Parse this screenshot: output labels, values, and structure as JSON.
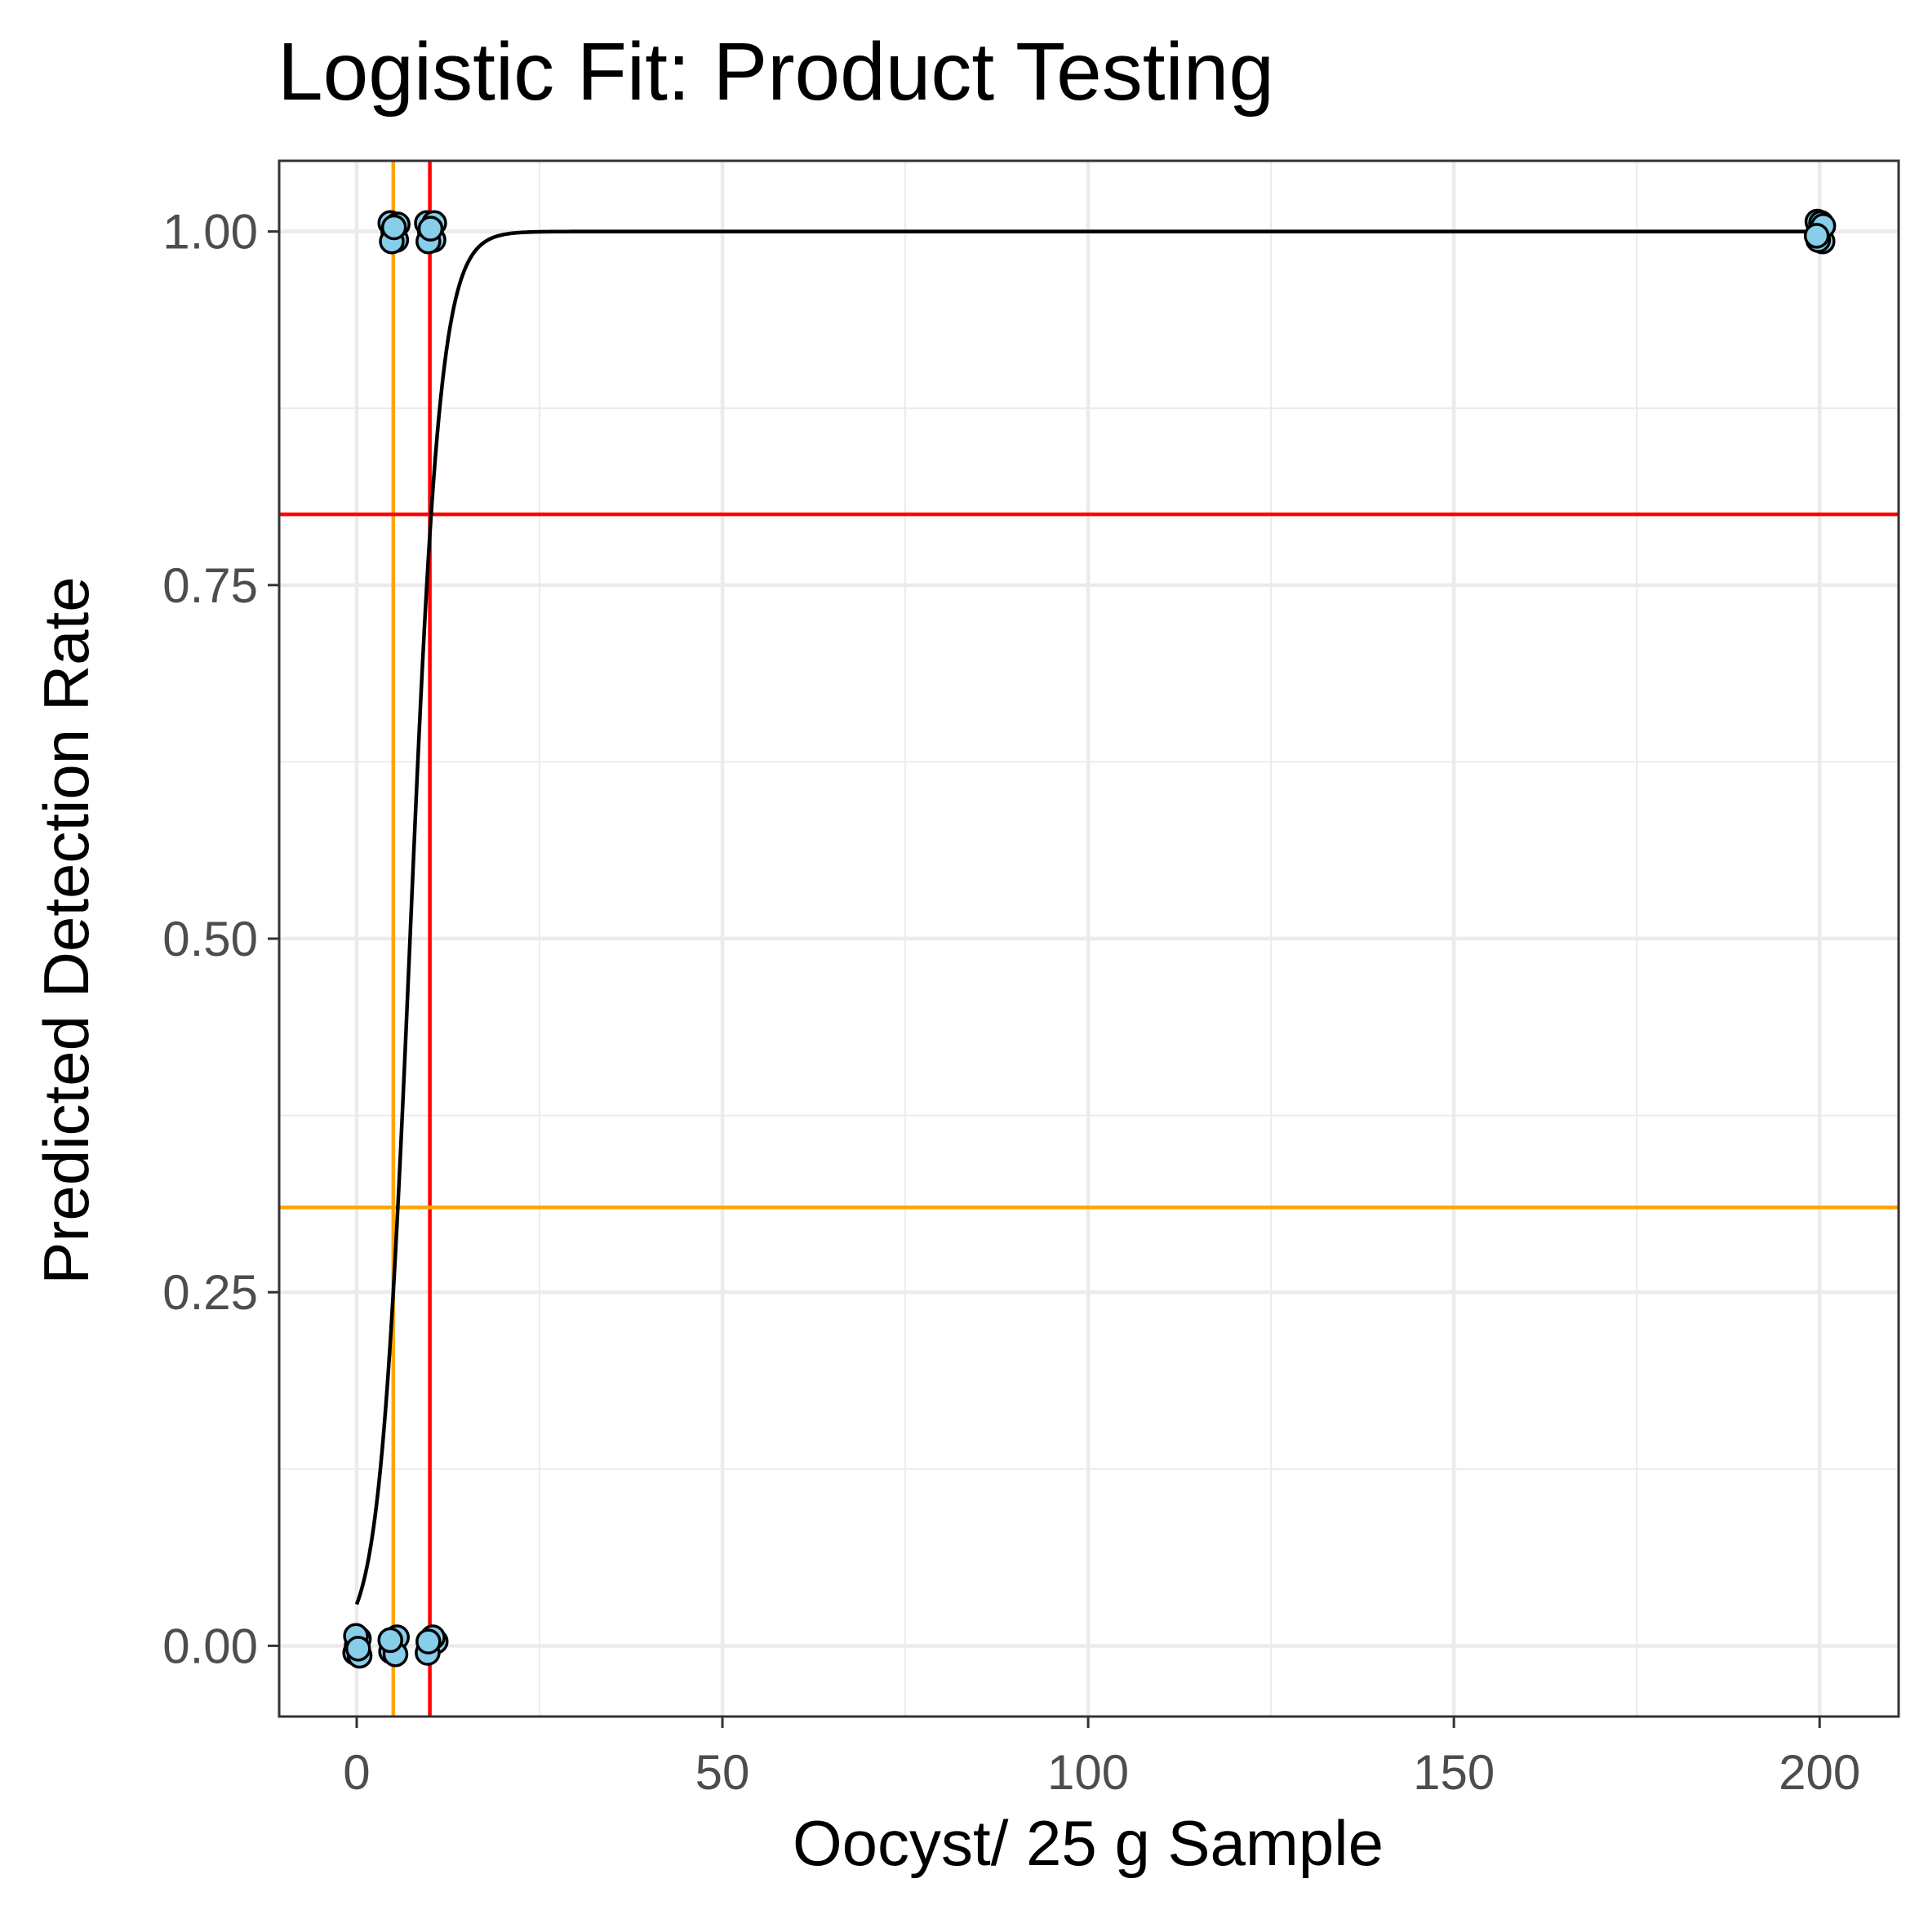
{
  "chart_data": {
    "type": "scatter",
    "title": "Logistic Fit: Product Testing",
    "xlabel": "Oocyst/ 25 g Sample",
    "ylabel": "Predicted Detection Rate",
    "xlim": [
      -10.6,
      210.8
    ],
    "ylim": [
      -0.05,
      1.05
    ],
    "x_ticks": [
      0,
      50,
      100,
      150,
      200
    ],
    "x_tick_labels": [
      "0",
      "50",
      "100",
      "150",
      "200"
    ],
    "y_ticks": [
      0,
      0.25,
      0.5,
      0.75,
      1.0
    ],
    "y_tick_labels": [
      "0.00",
      "0.25",
      "0.50",
      "0.75",
      "1.00"
    ],
    "x_minor_ticks": [
      25,
      75,
      125,
      175
    ],
    "y_minor_ticks": [
      0.125,
      0.375,
      0.625,
      0.875
    ],
    "grid": true,
    "legend": "none",
    "colors": {
      "point_fill": "#87CEEB",
      "point_stroke": "#000000",
      "fit_line": "#000000",
      "orange_ref": "#FFA500",
      "red_ref": "#FF0000",
      "grid": "#EBEBEB",
      "panel_border": "#333333",
      "tick_label": "#4D4D4D"
    },
    "reference_lines": [
      {
        "orientation": "vertical",
        "x": 5,
        "color": "#FFA500"
      },
      {
        "orientation": "vertical",
        "x": 10,
        "color": "#FF0000"
      },
      {
        "orientation": "horizontal",
        "y": 0.31,
        "color": "#FFA500"
      },
      {
        "orientation": "horizontal",
        "y": 0.8,
        "color": "#FF0000"
      }
    ],
    "logistic_fit": {
      "intercept": -3.5,
      "slope": 0.48,
      "x_range": [
        0,
        200
      ]
    },
    "series": [
      {
        "points": [
          {
            "x": 0,
            "y": 0.0
          },
          {
            "x": 0.3,
            "y": 0.005
          },
          {
            "x": -0.2,
            "y": -0.005
          },
          {
            "x": 0.4,
            "y": -0.007
          },
          {
            "x": -0.1,
            "y": 0.007
          },
          {
            "x": 0.2,
            "y": -0.002
          },
          {
            "x": 5,
            "y": 0.0
          },
          {
            "x": 5.5,
            "y": 0.006
          },
          {
            "x": 4.7,
            "y": -0.004
          },
          {
            "x": 5.3,
            "y": -0.006
          },
          {
            "x": 4.6,
            "y": 0.004
          },
          {
            "x": 10,
            "y": 0.0
          },
          {
            "x": 10.8,
            "y": 0.003
          },
          {
            "x": 9.7,
            "y": -0.005
          },
          {
            "x": 10.4,
            "y": 0.006
          },
          {
            "x": 9.8,
            "y": 0.003
          },
          {
            "x": 5,
            "y": 1.0
          },
          {
            "x": 4.6,
            "y": 1.006
          },
          {
            "x": 5.4,
            "y": 0.994
          },
          {
            "x": 4.8,
            "y": 0.993
          },
          {
            "x": 5.6,
            "y": 1.005
          },
          {
            "x": 5.1,
            "y": 1.003
          },
          {
            "x": 10,
            "y": 1.0
          },
          {
            "x": 9.6,
            "y": 1.006
          },
          {
            "x": 10.5,
            "y": 0.994
          },
          {
            "x": 9.8,
            "y": 0.993
          },
          {
            "x": 10.6,
            "y": 1.006
          },
          {
            "x": 10.1,
            "y": 1.002
          },
          {
            "x": 200,
            "y": 1.0
          },
          {
            "x": 199.7,
            "y": 1.007
          },
          {
            "x": 200.4,
            "y": 0.993
          },
          {
            "x": 200.2,
            "y": 1.006
          },
          {
            "x": 199.8,
            "y": 0.994
          },
          {
            "x": 200.5,
            "y": 1.004
          },
          {
            "x": 199.6,
            "y": 0.997
          }
        ]
      }
    ]
  }
}
